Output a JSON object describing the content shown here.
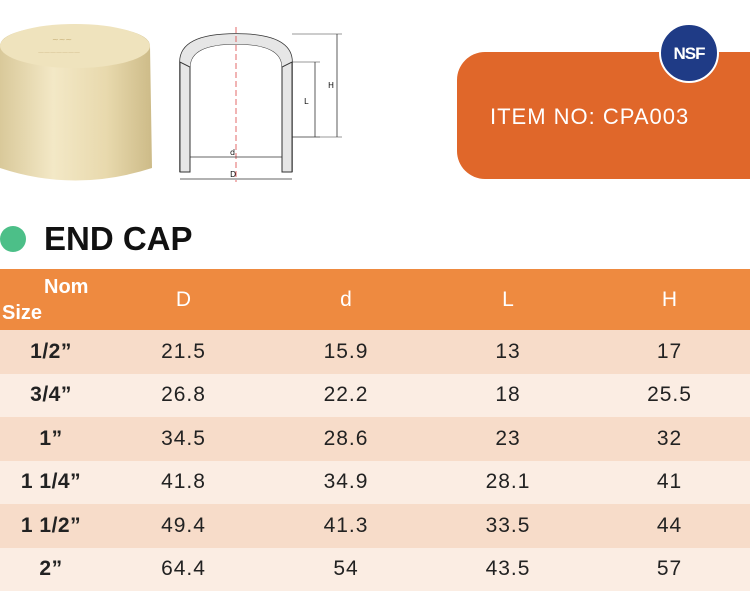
{
  "item_label": "ITEM  NO: CPA003",
  "cert_badge": "NSF",
  "title": "END CAP",
  "drawing_labels": {
    "d": "d",
    "D": "D",
    "L": "L",
    "H": "H"
  },
  "table": {
    "headers": {
      "nom_line1": "Nom",
      "nom_line2": "Size",
      "D": "D",
      "d": "d",
      "L": "L",
      "H": "H"
    },
    "rows": [
      {
        "size": "1/2”",
        "D": "21.5",
        "d": "15.9",
        "L": "13",
        "H": "17"
      },
      {
        "size": "3/4”",
        "D": "26.8",
        "d": "22.2",
        "L": "18",
        "H": "25.5"
      },
      {
        "size": "1”",
        "D": "34.5",
        "d": "28.6",
        "L": "23",
        "H": "32"
      },
      {
        "size": "1 1/4”",
        "D": "41.8",
        "d": "34.9",
        "L": "28.1",
        "H": "41"
      },
      {
        "size": "1 1/2”",
        "D": "49.4",
        "d": "41.3",
        "L": "33.5",
        "H": "44"
      },
      {
        "size": "2”",
        "D": "64.4",
        "d": "54",
        "L": "43.5",
        "H": "57"
      }
    ]
  },
  "colors": {
    "accent_orange": "#e0672a",
    "header_orange": "#ee8a40",
    "row_light": "#fbede3",
    "row_dark": "#f7dcc9",
    "bullet_green": "#4cbf88",
    "nsf_blue": "#1f3b86"
  }
}
